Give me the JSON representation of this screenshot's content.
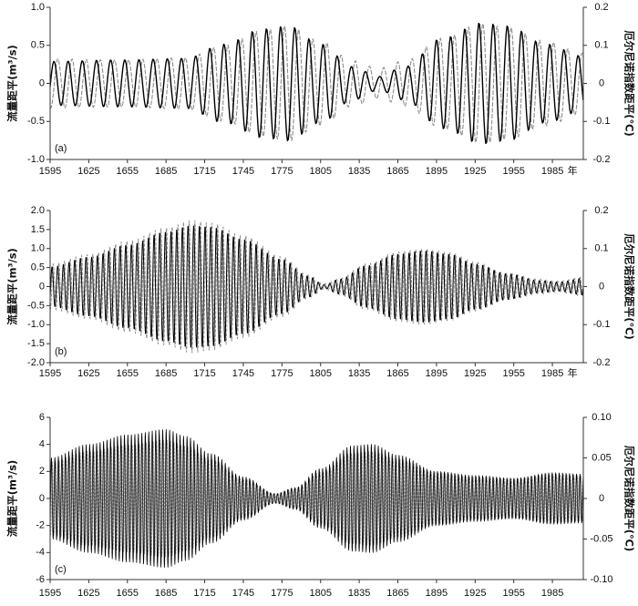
{
  "chart_data": [
    {
      "type": "line",
      "panel_label": "(a)",
      "xlabel": "年",
      "ylabel": "流量距平(m³/s)",
      "ylabel_right": "厄尔尼诺指数距平(℃)",
      "xlim": [
        1595,
        2009
      ],
      "ylim": [
        -1.0,
        1.0
      ],
      "ylim_right": [
        -0.2,
        0.2
      ],
      "x_ticks": [
        "1595",
        "1625",
        "1655",
        "1685",
        "1715",
        "1745",
        "1775",
        "1805",
        "1835",
        "1865",
        "1895",
        "1925",
        "1955",
        "1985"
      ],
      "y_ticks": [
        "1.0",
        "0.5",
        "0",
        "-0.5",
        "-1.0"
      ],
      "y_ticks_right": [
        "0.2",
        "0.1",
        "0",
        "-0.1",
        "-0.2"
      ],
      "grid": false,
      "series": [
        {
          "right_axis": false,
          "dashed": false,
          "color": "#000000",
          "period": 11,
          "peak_year": 1598,
          "envelope": {
            "x": [
              1595,
              1650,
              1700,
              1730,
              1760,
              1780,
              1805,
              1830,
              1850,
              1870,
              1900,
              1930,
              1950,
              1980,
              2009
            ],
            "amplitude": [
              0.29,
              0.31,
              0.33,
              0.52,
              0.72,
              0.76,
              0.52,
              0.22,
              0.09,
              0.22,
              0.6,
              0.8,
              0.76,
              0.52,
              0.36
            ]
          }
        },
        {
          "right_axis": true,
          "dashed": true,
          "color": "#8c8c8c",
          "period": 11,
          "peak_year": 1601,
          "envelope": {
            "x": [
              1595,
              1650,
              1700,
              1730,
              1760,
              1780,
              1805,
              1830,
              1850,
              1870,
              1900,
              1930,
              1950,
              1980,
              2009
            ],
            "amplitude": [
              0.065,
              0.062,
              0.068,
              0.1,
              0.14,
              0.152,
              0.112,
              0.06,
              0.04,
              0.06,
              0.12,
              0.158,
              0.148,
              0.112,
              0.08
            ]
          }
        }
      ]
    },
    {
      "type": "line",
      "panel_label": "(b)",
      "xlabel": "年",
      "ylabel": "流量距平(m³/s)",
      "ylabel_right": "厄尔尼诺指数距平(℃)",
      "xlim": [
        1595,
        2009
      ],
      "ylim": [
        -2.0,
        2.0
      ],
      "ylim_right": [
        -0.2,
        0.2
      ],
      "x_ticks": [
        "1595",
        "1625",
        "1655",
        "1685",
        "1715",
        "1745",
        "1775",
        "1805",
        "1835",
        "1865",
        "1895",
        "1925",
        "1955",
        "1985"
      ],
      "y_ticks": [
        "2.0",
        "1.5",
        "1.0",
        "0.5",
        "0",
        "-0.5",
        "-1.0",
        "-1.5",
        "-2.0"
      ],
      "y_ticks_right": [
        "0.2",
        "0.1",
        "0",
        "-0.1",
        "-0.2"
      ],
      "grid": false,
      "series": [
        {
          "right_axis": false,
          "dashed": false,
          "color": "#000000",
          "period": 4.4,
          "peak_year": 1596.5,
          "envelope": {
            "x": [
              1595,
              1625,
              1655,
              1685,
              1705,
              1720,
              1745,
              1775,
              1795,
              1808,
              1820,
              1840,
              1865,
              1885,
              1905,
              1925,
              1950,
              1975,
              1990,
              2009
            ],
            "amplitude": [
              0.52,
              0.78,
              1.1,
              1.45,
              1.62,
              1.58,
              1.25,
              0.72,
              0.28,
              0.05,
              0.2,
              0.55,
              0.86,
              0.95,
              0.86,
              0.6,
              0.34,
              0.16,
              0.12,
              0.22
            ]
          }
        },
        {
          "right_axis": true,
          "dashed": true,
          "color": "#8c8c8c",
          "period": 4.4,
          "peak_year": 1597.4,
          "envelope": {
            "x": [
              1595,
              1625,
              1655,
              1685,
              1705,
              1720,
              1745,
              1775,
              1795,
              1808,
              1820,
              1840,
              1865,
              1885,
              1905,
              1925,
              1950,
              1975,
              1990,
              2009
            ],
            "amplitude": [
              0.06,
              0.085,
              0.12,
              0.155,
              0.175,
              0.168,
              0.135,
              0.08,
              0.032,
              0.008,
              0.022,
              0.06,
              0.092,
              0.1,
              0.09,
              0.065,
              0.035,
              0.02,
              0.015,
              0.025
            ]
          }
        }
      ]
    },
    {
      "type": "line",
      "panel_label": "(c)",
      "ylabel": "流量距平(m³/s)",
      "ylabel_right": "厄尔尼诺指数距平(℃)",
      "xlim": [
        1595,
        2009
      ],
      "ylim": [
        -6,
        6
      ],
      "ylim_right": [
        -0.1,
        0.1
      ],
      "x_ticks": [
        "1595",
        "1625",
        "1655",
        "1685",
        "1715",
        "1745",
        "1775",
        "1805",
        "1835",
        "1865",
        "1895",
        "1925",
        "1955",
        "1985"
      ],
      "y_ticks": [
        "6",
        "4",
        "2",
        "0",
        "-2",
        "-4",
        "-6"
      ],
      "y_ticks_right": [
        "0.10",
        "0.05",
        "0",
        "-0.05",
        "-0.10"
      ],
      "grid": false,
      "series": [
        {
          "right_axis": false,
          "dashed": false,
          "color": "#000000",
          "period": 2.7,
          "peak_year": 1596,
          "envelope": {
            "x": [
              1595,
              1625,
              1655,
              1685,
              1700,
              1720,
              1745,
              1770,
              1785,
              1805,
              1830,
              1845,
              1865,
              1895,
              1925,
              1955,
              1985,
              2009
            ],
            "amplitude": [
              3.0,
              4.0,
              4.7,
              5.1,
              4.6,
              3.3,
              1.6,
              0.35,
              0.8,
              2.2,
              3.9,
              4.0,
              3.2,
              2.0,
              1.7,
              1.5,
              1.9,
              1.8
            ]
          }
        },
        {
          "right_axis": true,
          "dashed": true,
          "color": "#8c8c8c",
          "period": 2.7,
          "peak_year": 1596.7,
          "envelope": {
            "x": [
              1595,
              1625,
              1655,
              1685,
              1700,
              1720,
              1745,
              1770,
              1785,
              1805,
              1830,
              1845,
              1865,
              1895,
              1925,
              1955,
              1985,
              2009
            ],
            "amplitude": [
              0.045,
              0.058,
              0.066,
              0.072,
              0.065,
              0.048,
              0.024,
              0.006,
              0.012,
              0.032,
              0.056,
              0.058,
              0.048,
              0.032,
              0.026,
              0.024,
              0.03,
              0.028
            ]
          }
        }
      ]
    }
  ]
}
